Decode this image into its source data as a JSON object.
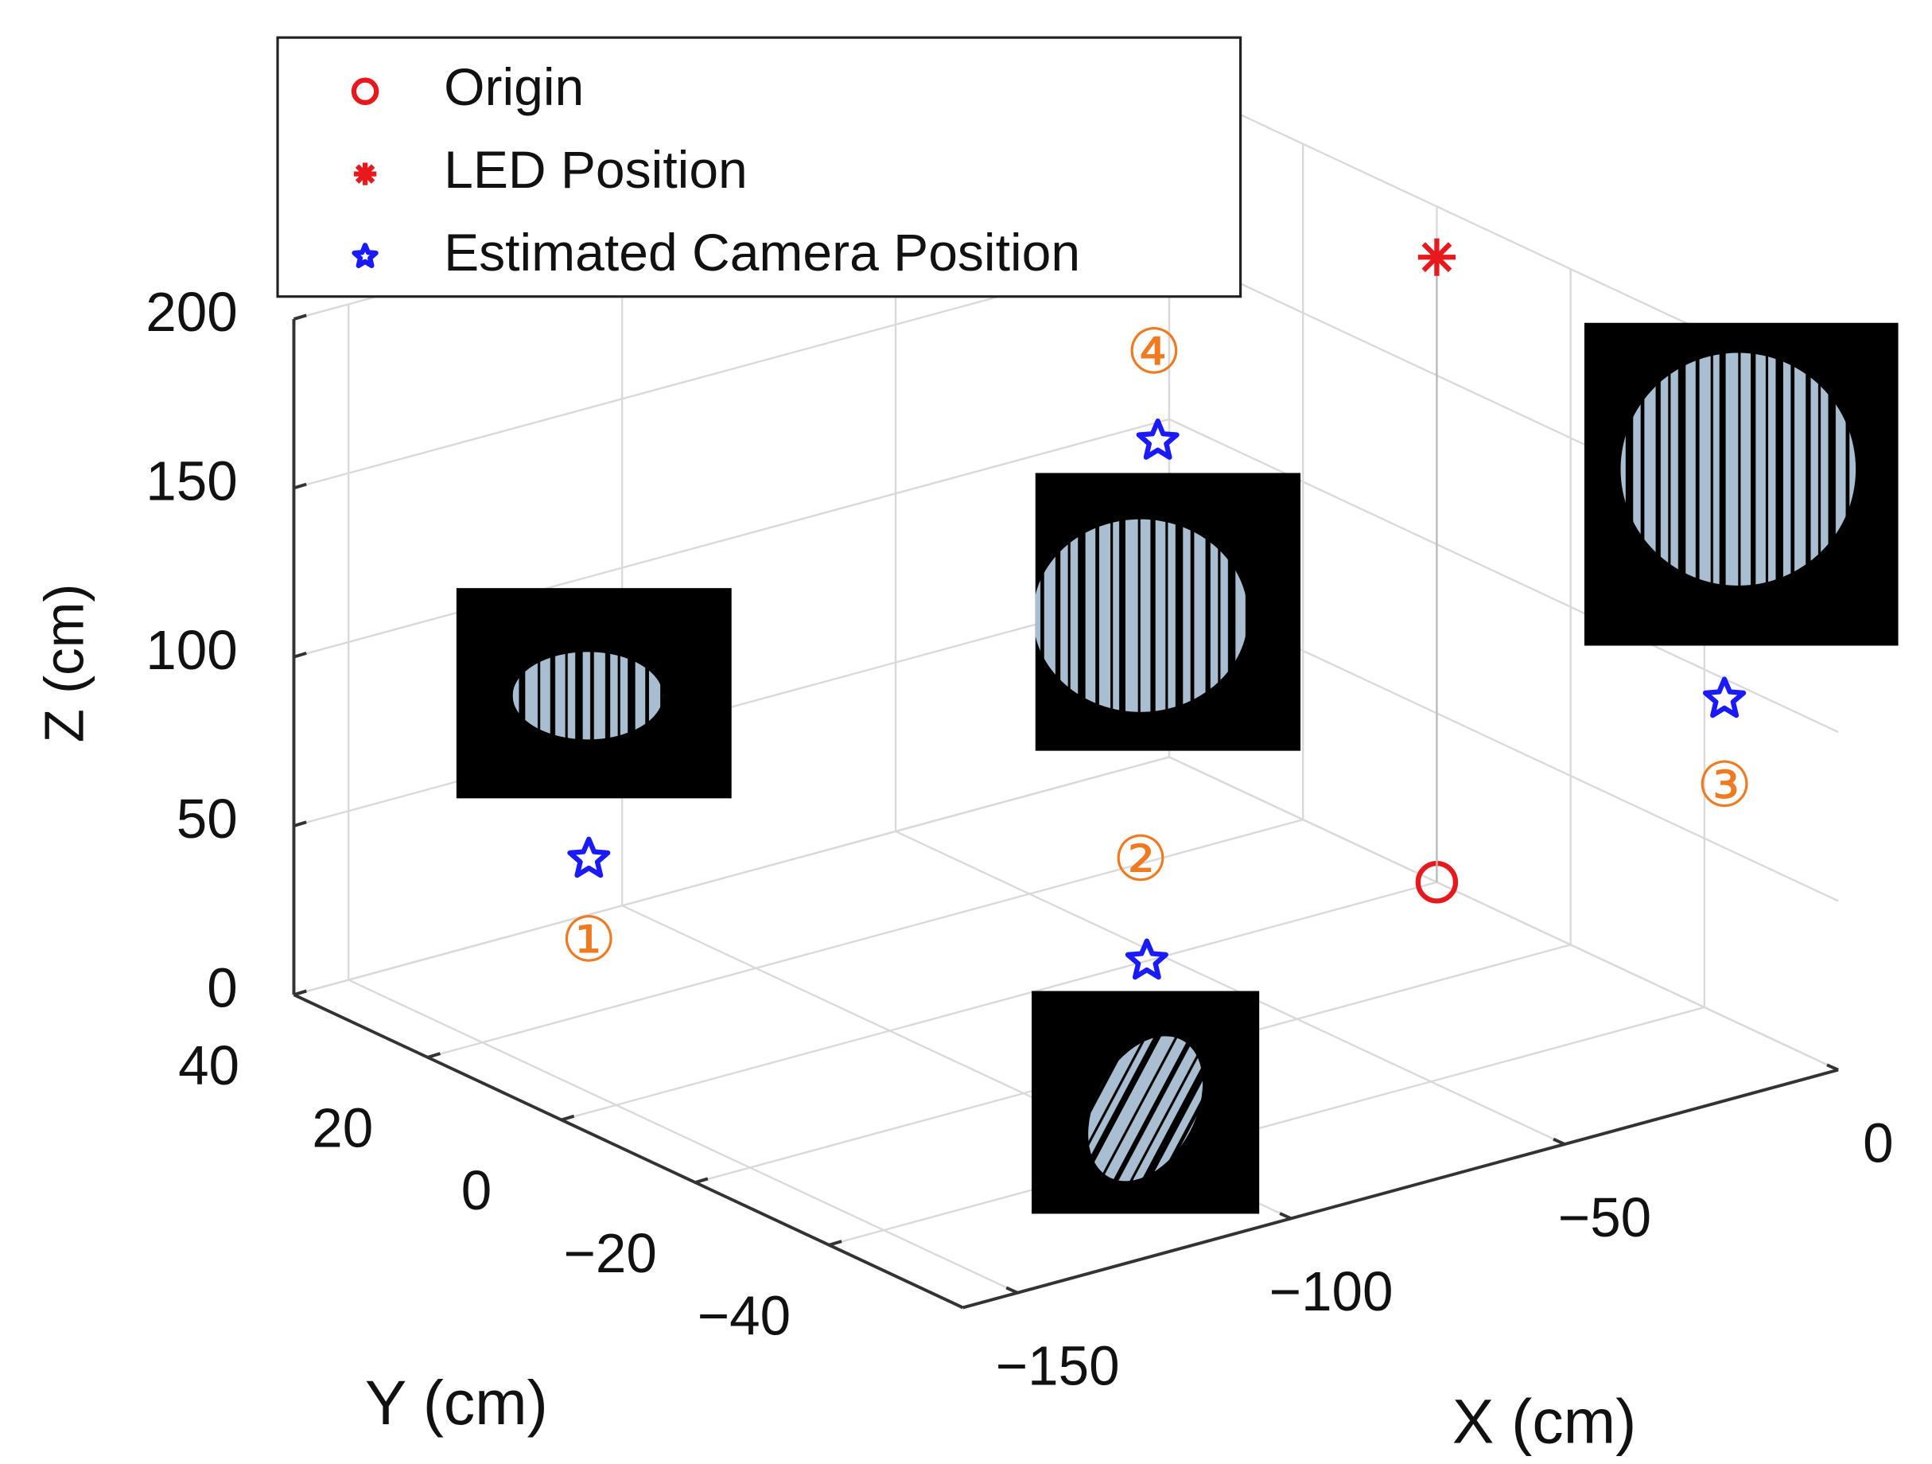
{
  "chart_data": {
    "type": "scatter3d",
    "xlabel": "X (cm)",
    "ylabel": "Y (cm)",
    "zlabel": "Z (cm)",
    "xlim": [
      -160,
      0
    ],
    "ylim": [
      -60,
      40
    ],
    "zlim": [
      0,
      200
    ],
    "xticks": [
      {
        "value": -150,
        "label": "−150"
      },
      {
        "value": -100,
        "label": "−100"
      },
      {
        "value": -50,
        "label": "−50"
      },
      0
    ],
    "yticks": [
      {
        "value": -40,
        "label": "−40"
      },
      {
        "value": -20,
        "label": "−20"
      },
      0,
      20,
      40
    ],
    "zticks": [
      0,
      50,
      100,
      150,
      200
    ],
    "grid": true,
    "legend": "upper left",
    "series": [
      {
        "name": "Origin",
        "color": "#e8191c",
        "marker": "circle",
        "x": [
          0
        ],
        "y": [
          0
        ],
        "z": [
          0
        ]
      },
      {
        "name": "LED Position",
        "color": "#e8191c",
        "marker": "asterisk",
        "x": [
          0
        ],
        "y": [
          0
        ],
        "z": [
          185
        ]
      },
      {
        "name": "Estimated Camera Position",
        "color": "#1a1aff",
        "marker": "pentagram",
        "x": [
          -155,
          -53,
          0,
          -51
        ],
        "y": [
          0,
          0,
          -43,
          0
        ],
        "z": [
          75,
          0,
          94,
          153
        ],
        "labels": [
          "①",
          "②",
          "③",
          "④"
        ]
      }
    ]
  }
}
